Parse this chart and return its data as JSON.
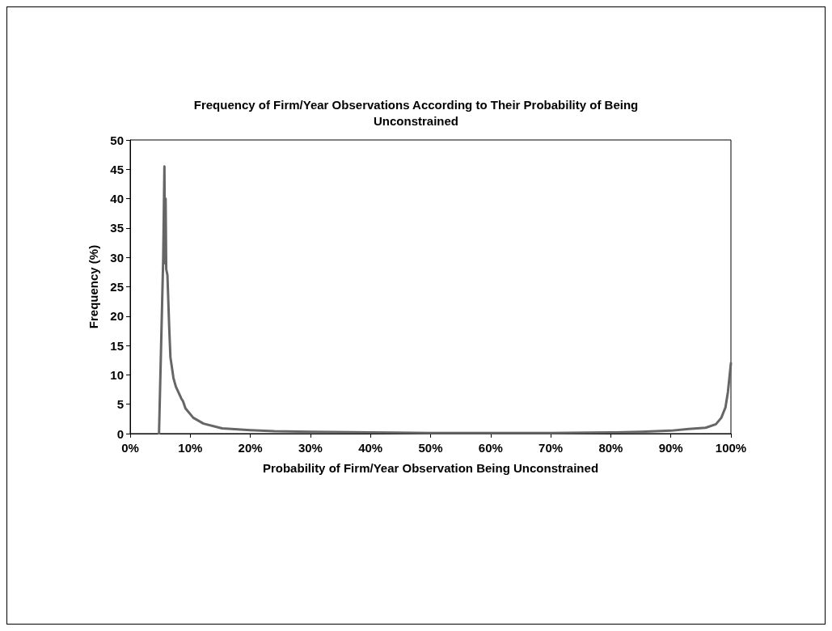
{
  "chart_data": {
    "type": "line",
    "title": "Frequency of Firm/Year Observations According to Their Probability of Being\nUnconstrained",
    "xlabel": "Probability of Firm/Year Observation Being Unconstrained",
    "ylabel": "Frequency (%)",
    "series": [
      {
        "color": "#666666",
        "x": [
          4.8,
          5.5,
          5.7,
          5.8,
          5.9,
          6.0,
          6.2,
          6.5,
          6.7,
          7.2,
          7.6,
          8.5,
          8.8,
          9.2,
          10.5,
          12.2,
          15.3,
          20,
          24,
          30,
          40,
          50,
          60,
          70,
          80,
          85,
          90,
          93,
          95.8,
          97.5,
          98.4,
          99.1,
          99.5,
          100
        ],
        "values": [
          0,
          30,
          45.5,
          29,
          40,
          28,
          27,
          18,
          13,
          9.5,
          8,
          6,
          5.5,
          4.3,
          2.7,
          1.7,
          0.9,
          0.6,
          0.4,
          0.3,
          0.2,
          0.1,
          0.1,
          0.1,
          0.2,
          0.3,
          0.5,
          0.8,
          1.0,
          1.6,
          2.7,
          4.5,
          7.1,
          12
        ]
      }
    ],
    "xlim": [
      0,
      100
    ],
    "xticks": [
      {
        "value": 0,
        "label": "0%"
      },
      {
        "value": 10,
        "label": "10%"
      },
      {
        "value": 20,
        "label": "20%"
      },
      {
        "value": 30,
        "label": "30%"
      },
      {
        "value": 40,
        "label": "40%"
      },
      {
        "value": 50,
        "label": "50%"
      },
      {
        "value": 60,
        "label": "60%"
      },
      {
        "value": 70,
        "label": "70%"
      },
      {
        "value": 80,
        "label": "80%"
      },
      {
        "value": 90,
        "label": "90%"
      },
      {
        "value": 100,
        "label": "100%"
      }
    ],
    "ylim": [
      0,
      50
    ],
    "yticks": [
      0,
      5,
      10,
      15,
      20,
      25,
      30,
      35,
      40,
      45,
      50
    ],
    "grid": false,
    "marker": "none",
    "line_style": "solid"
  }
}
